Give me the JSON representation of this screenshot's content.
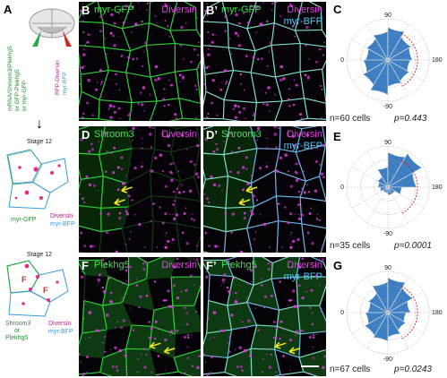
{
  "panel_labels": {
    "A": "A",
    "B": "B",
    "Bp": "B’",
    "C": "C",
    "D": "D",
    "Dp": "D’",
    "E": "E",
    "F": "F",
    "Fp": "F’",
    "G": "G"
  },
  "rows": [
    {
      "green": "myr-GFP",
      "green_p": "myr-GFP",
      "magenta": "Diversin",
      "cyan": "myr-BFP"
    },
    {
      "green": "Shroom3",
      "green_p": "Shroom3",
      "magenta": "Diversin",
      "cyan": "myr-BFP"
    },
    {
      "green": "Plekhg5",
      "green_p": "Plekhg5",
      "magenta": "Diversin",
      "cyan": "myr-BFP"
    }
  ],
  "schematic": {
    "inj_green": "mRNA/Shroom3/Plekhg5",
    "inj_green2": "or GFP-Plekhg5",
    "inj_green3": "or myr-GFP",
    "inj_red": "RFP-Diversin",
    "inj_red2": "myr-BFP",
    "stage1": "Stage 12",
    "stage2": "Stage 12",
    "legend1_green": "myr-GFP",
    "legend1_mag": "Diversin",
    "legend1_cyan": "myr-BFP",
    "legend2_green": "Shroom3",
    "legend2_green2": "or",
    "legend2_green3": "Plekhg5",
    "legend2_mag": "Diversin",
    "legend2_cyan": "myr-BFP",
    "f_label": "F",
    "arrow": "↓"
  },
  "stats": [
    {
      "n": "n=60 cells",
      "p": "p=0.443"
    },
    {
      "n": "n=35 cells",
      "p": "p=0.0001"
    },
    {
      "n": "n=67 cells",
      "p": "p=0.0243"
    }
  ],
  "polar_ticks": {
    "top": "90",
    "right": "180",
    "bottom": "-90",
    "left": "0"
  },
  "chart_data": [
    {
      "type": "polar-histogram",
      "title": "",
      "angle_ticks": [
        "90",
        "180",
        "-90",
        "0"
      ],
      "bins_deg": [
        0,
        30,
        60,
        90,
        120,
        150,
        180,
        210,
        240,
        270,
        300,
        330
      ],
      "values": [
        0.55,
        0.6,
        0.7,
        0.8,
        0.65,
        0.6,
        0.55,
        0.6,
        0.65,
        0.85,
        0.7,
        0.6
      ],
      "n": "n=60 cells",
      "p": "p=0.443"
    },
    {
      "type": "polar-histogram",
      "title": "",
      "angle_ticks": [
        "90",
        "180",
        "-90",
        "0"
      ],
      "bins_deg": [
        0,
        30,
        60,
        90,
        120,
        150,
        180,
        210,
        240,
        270,
        300,
        330
      ],
      "values": [
        0.25,
        0.3,
        0.5,
        0.85,
        0.95,
        0.7,
        0.35,
        0.2,
        0.2,
        0.15,
        0.15,
        0.2
      ],
      "n": "n=35 cells",
      "p": "p=0.0001"
    },
    {
      "type": "polar-histogram",
      "title": "",
      "angle_ticks": [
        "90",
        "180",
        "-90",
        "0"
      ],
      "bins_deg": [
        0,
        30,
        60,
        90,
        120,
        150,
        180,
        210,
        240,
        270,
        300,
        330
      ],
      "values": [
        0.5,
        0.55,
        0.75,
        0.85,
        0.7,
        0.55,
        0.45,
        0.5,
        0.6,
        0.7,
        0.65,
        0.55
      ],
      "n": "n=67 cells",
      "p": "p=0.0243"
    }
  ],
  "colors": {
    "bar": "#3e7fc4",
    "membrane": "#2ed13a",
    "dots": "#d63bd6",
    "bfp": "#6fb7e6",
    "arrow": "#f2e61a",
    "ring": "#d61c1c"
  }
}
